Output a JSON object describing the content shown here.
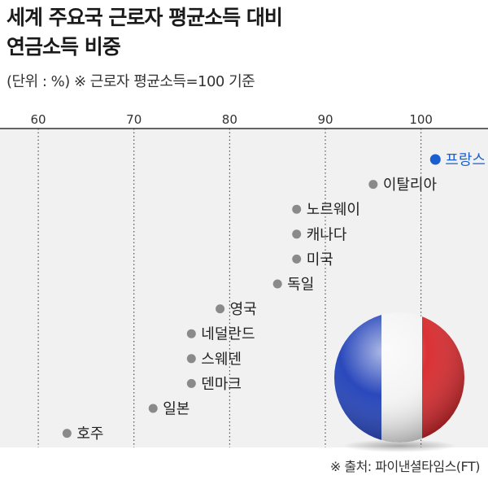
{
  "title_line1": "세계 주요국 근로자 평균소득 대비",
  "title_line2": "연금소득 비중",
  "subtitle": "(단위 : %) ※ 근로자 평균소득=100 기준",
  "source": "※ 출처: 파이낸셜타임스(FT)",
  "colors": {
    "highlight": "#1a5fd0",
    "point": "#8a8a8a",
    "plot_bg": "#f1f1f1",
    "grid": "#333333"
  },
  "chart_data": {
    "type": "scatter",
    "title": "세계 주요국 근로자 평균소득 대비 연금소득 비중",
    "xlim": [
      56,
      107
    ],
    "x_ticks": [
      60,
      70,
      80,
      90,
      100
    ],
    "grid": true,
    "points": [
      {
        "label": "프랑스",
        "value": 101.5,
        "highlight": true
      },
      {
        "label": "이탈리아",
        "value": 95
      },
      {
        "label": "노르웨이",
        "value": 87
      },
      {
        "label": "캐나다",
        "value": 87
      },
      {
        "label": "미국",
        "value": 87
      },
      {
        "label": "독일",
        "value": 85
      },
      {
        "label": "영국",
        "value": 79
      },
      {
        "label": "네덜란드",
        "value": 76
      },
      {
        "label": "스웨덴",
        "value": 76
      },
      {
        "label": "덴마크",
        "value": 76
      },
      {
        "label": "일본",
        "value": 72
      },
      {
        "label": "호주",
        "value": 63
      }
    ]
  }
}
